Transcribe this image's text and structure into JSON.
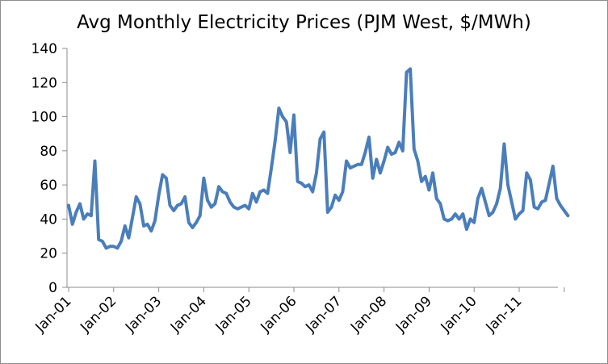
{
  "chart_data": {
    "type": "line",
    "title": "Avg Monthly Electricity Prices (PJM West, $/MWh)",
    "xlabel": "",
    "ylabel": "",
    "ylim": [
      0,
      140
    ],
    "yticks": [
      0,
      20,
      40,
      60,
      80,
      100,
      120,
      140
    ],
    "xticks": [
      "Jan-01",
      "Jan-02",
      "Jan-03",
      "Jan-04",
      "Jan-05",
      "Jan-06",
      "Jan-07",
      "Jan-08",
      "Jan-09",
      "Jan-10",
      "Jan-11"
    ],
    "grid": false,
    "legend": "none",
    "line_color": "#4a7ebb",
    "series": [
      {
        "x_start": "Jan-01",
        "frequency": "monthly",
        "values": [
          48,
          37,
          44,
          49,
          40,
          43,
          42,
          74,
          28,
          27,
          23,
          24,
          24,
          23,
          27,
          36,
          29,
          41,
          53,
          49,
          36,
          37,
          33,
          39,
          54,
          66,
          64,
          48,
          45,
          48,
          49,
          53,
          38,
          35,
          38,
          42,
          64,
          51,
          47,
          49,
          59,
          56,
          55,
          50,
          47,
          46,
          47,
          48,
          46,
          55,
          50,
          56,
          57,
          55,
          70,
          86,
          105,
          100,
          97,
          79,
          101,
          62,
          61,
          59,
          60,
          56,
          67,
          87,
          91,
          44,
          47,
          54,
          51,
          56,
          74,
          70,
          71,
          72,
          72,
          79,
          88,
          64,
          75,
          67,
          74,
          82,
          78,
          79,
          85,
          80,
          126,
          128,
          81,
          74,
          62,
          65,
          57,
          67,
          52,
          49,
          40,
          39,
          40,
          43,
          40,
          43,
          34,
          40,
          38,
          52,
          58,
          50,
          42,
          44,
          49,
          58,
          84,
          60,
          50,
          40,
          43,
          45,
          67,
          63,
          47,
          46,
          50,
          51,
          61,
          71,
          52,
          48,
          45,
          42
        ]
      }
    ]
  }
}
